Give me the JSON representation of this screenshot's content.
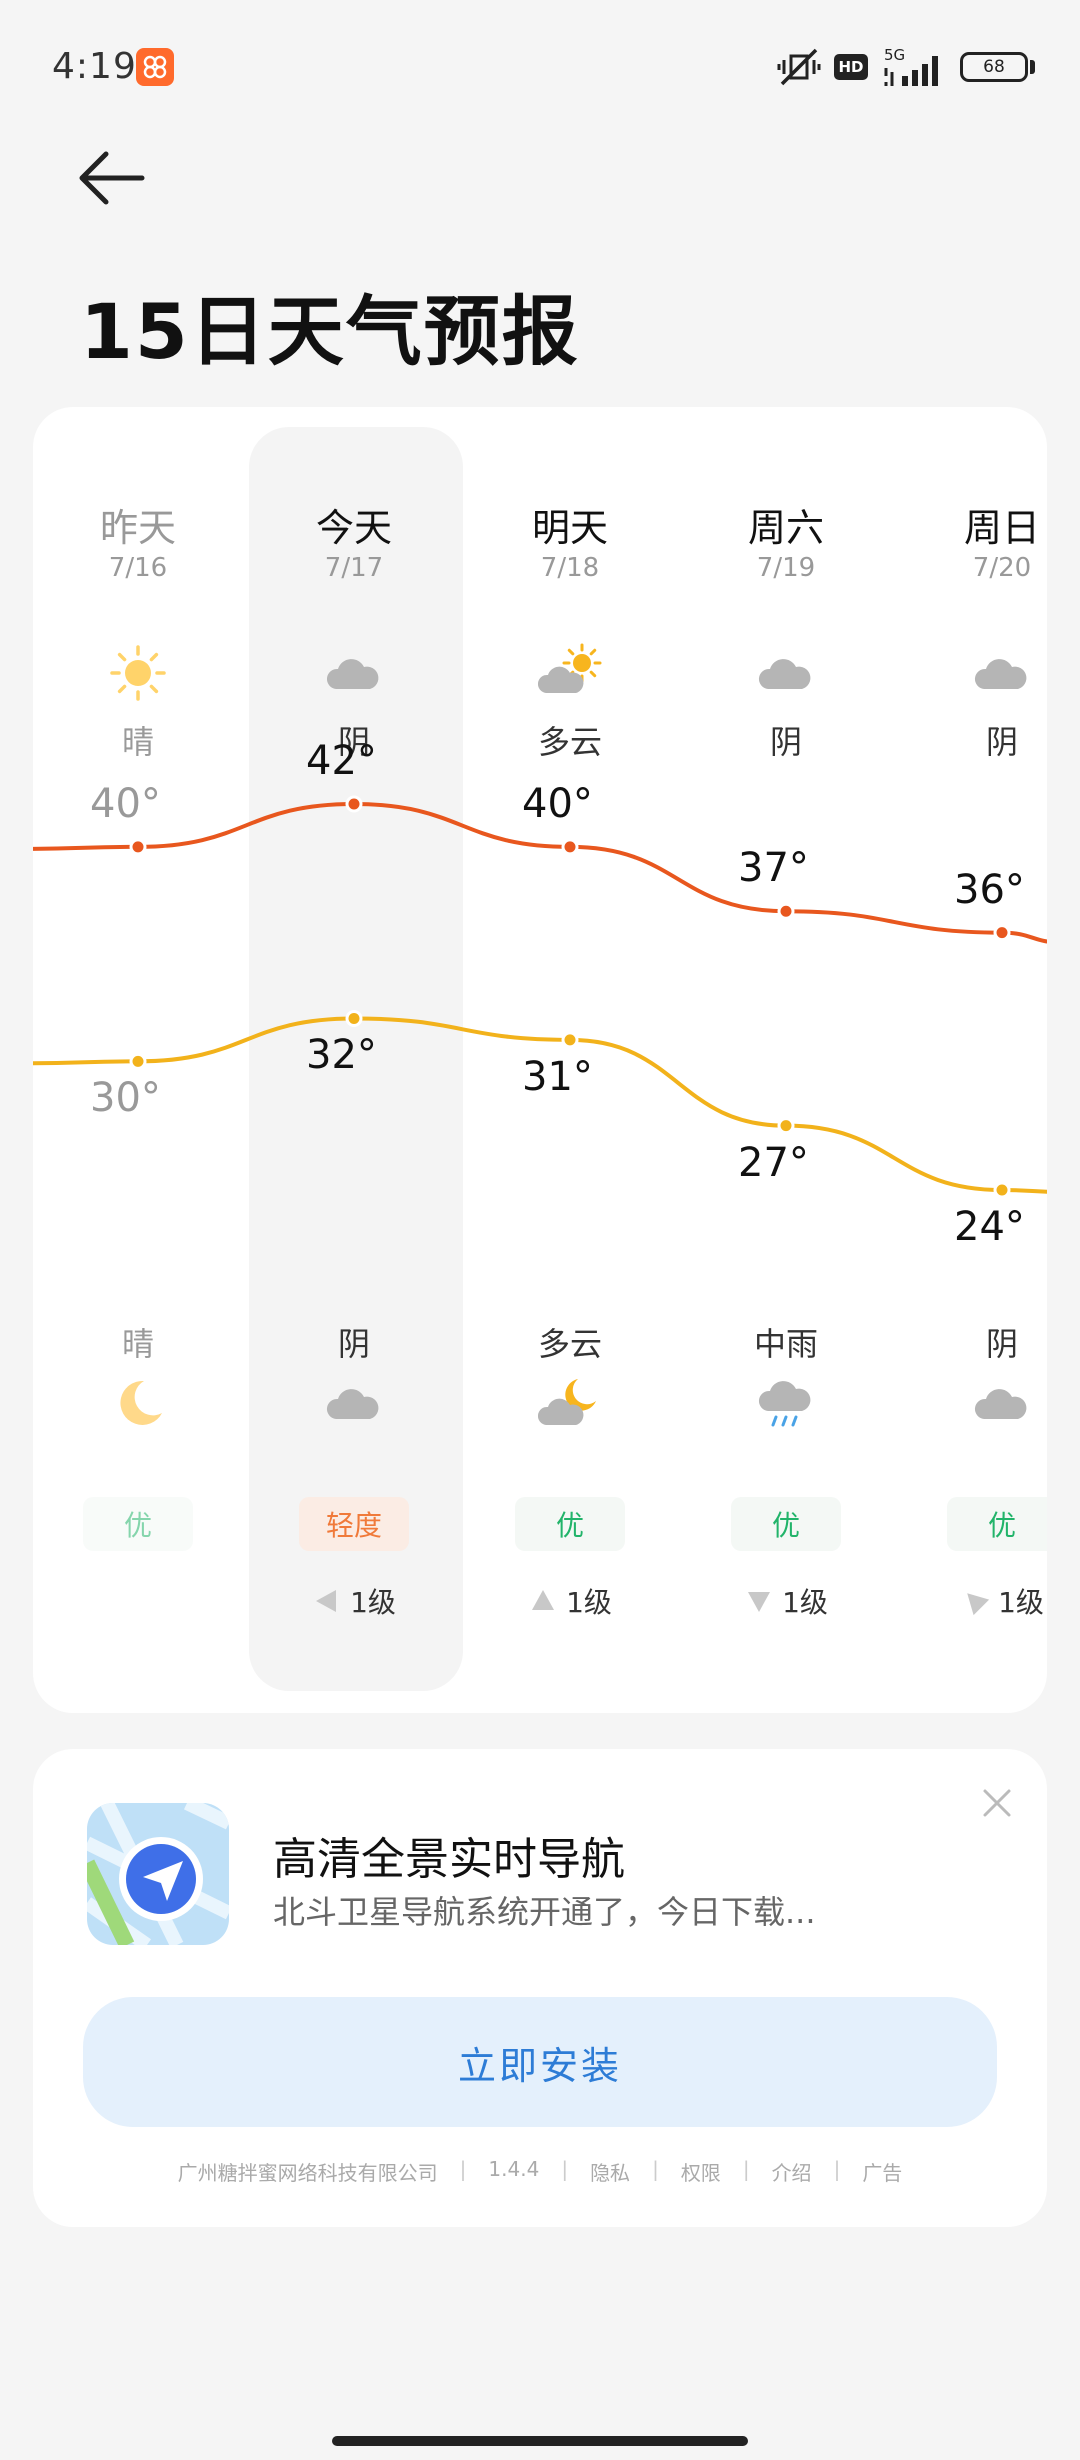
{
  "status_bar": {
    "time": "4:19",
    "hd": "HD",
    "network": "5G",
    "battery": "68"
  },
  "page": {
    "title": "15日天气预报"
  },
  "days": [
    {
      "name": "昨天",
      "date": "7/16",
      "day_cond": "晴",
      "day_icon": "sun-icon",
      "high": "40°",
      "low": "30°",
      "night_cond": "晴",
      "night_icon": "moon-icon",
      "aqi": "优",
      "wind": ""
    },
    {
      "name": "今天",
      "date": "7/17",
      "day_cond": "阴",
      "day_icon": "cloud-icon",
      "high": "42°",
      "low": "32°",
      "night_cond": "阴",
      "night_icon": "cloud-icon",
      "aqi": "轻度",
      "wind": "1级"
    },
    {
      "name": "明天",
      "date": "7/18",
      "day_cond": "多云",
      "day_icon": "partly-cloudy-day-icon",
      "high": "40°",
      "low": "31°",
      "night_cond": "多云",
      "night_icon": "partly-cloudy-night-icon",
      "aqi": "优",
      "wind": "1级"
    },
    {
      "name": "周六",
      "date": "7/19",
      "day_cond": "阴",
      "day_icon": "cloud-icon",
      "high": "37°",
      "low": "27°",
      "night_cond": "中雨",
      "night_icon": "rain-icon",
      "aqi": "优",
      "wind": "1级"
    },
    {
      "name": "周日",
      "date": "7/20",
      "day_cond": "阴",
      "day_icon": "cloud-icon",
      "high": "36°",
      "low": "24°",
      "night_cond": "阴",
      "night_icon": "cloud-icon",
      "aqi": "优",
      "wind": "1级"
    }
  ],
  "chart_data": {
    "type": "line",
    "categories": [
      "7/16",
      "7/17",
      "7/18",
      "7/19",
      "7/20"
    ],
    "series": [
      {
        "values": [
          40,
          42,
          40,
          37,
          36
        ],
        "color": "#e8571e"
      },
      {
        "values": [
          30,
          32,
          31,
          27,
          24
        ],
        "color": "#f2b21b"
      }
    ]
  },
  "colors": {
    "aqi_good": "#22b46a",
    "aqi_light": "#f07a3a",
    "aqi_good_bg": "#f4f8f5",
    "aqi_light_bg": "#fbece4"
  },
  "ad": {
    "title": "高清全景实时导航",
    "subtitle": "北斗卫星导航系统开通了，今日下载...",
    "button": "立即安装",
    "footer": [
      "广州糖拌蜜网络科技有限公司",
      "1.4.4",
      "隐私",
      "权限",
      "介绍",
      "广告"
    ]
  }
}
